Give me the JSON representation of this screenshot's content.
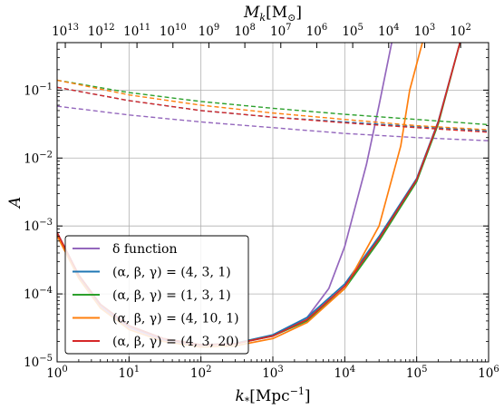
{
  "chart_data": {
    "type": "line",
    "xlabel_main": "k",
    "xlabel_sub": "*",
    "xlabel_unit": "[Mpc",
    "xlabel_unit_exp": "−1",
    "xlabel_unit_close": "]",
    "ylabel": "A",
    "top_label_main": "M",
    "top_label_sub": "k",
    "top_label_unit": "[M",
    "top_label_unit_sub": "⊙",
    "top_label_unit_close": "]",
    "x_scale": "log",
    "y_scale": "log",
    "xlim": [
      1,
      1000000
    ],
    "ylim": [
      1e-05,
      0.5
    ],
    "grid": true,
    "legend_position": "lower-left",
    "x_ticks": [
      {
        "value": 1,
        "base": "10",
        "exp": "0"
      },
      {
        "value": 10,
        "base": "10",
        "exp": "1"
      },
      {
        "value": 100,
        "base": "10",
        "exp": "2"
      },
      {
        "value": 1000,
        "base": "10",
        "exp": "3"
      },
      {
        "value": 10000,
        "base": "10",
        "exp": "4"
      },
      {
        "value": 100000,
        "base": "10",
        "exp": "5"
      },
      {
        "value": 1000000,
        "base": "10",
        "exp": "6"
      }
    ],
    "y_ticks": [
      {
        "value": 1e-05,
        "base": "10",
        "exp": "−5"
      },
      {
        "value": 0.0001,
        "base": "10",
        "exp": "−4"
      },
      {
        "value": 0.001,
        "base": "10",
        "exp": "−3"
      },
      {
        "value": 0.01,
        "base": "10",
        "exp": "−2"
      },
      {
        "value": 0.1,
        "base": "10",
        "exp": "−1"
      }
    ],
    "top_ticks": [
      {
        "k": 1.3,
        "base": "10",
        "exp": "13"
      },
      {
        "k": 4.1,
        "base": "10",
        "exp": "12"
      },
      {
        "k": 12.9,
        "base": "10",
        "exp": "11"
      },
      {
        "k": 40.8,
        "base": "10",
        "exp": "10"
      },
      {
        "k": 129,
        "base": "10",
        "exp": "9"
      },
      {
        "k": 408,
        "base": "10",
        "exp": "8"
      },
      {
        "k": 1290,
        "base": "10",
        "exp": "7"
      },
      {
        "k": 4080,
        "base": "10",
        "exp": "6"
      },
      {
        "k": 12900,
        "base": "10",
        "exp": "5"
      },
      {
        "k": 40800,
        "base": "10",
        "exp": "4"
      },
      {
        "k": 129000,
        "base": "10",
        "exp": "3"
      },
      {
        "k": 408000,
        "base": "10",
        "exp": "2"
      }
    ],
    "series": [
      {
        "name": "δ function",
        "color": "#9467bd",
        "solid": [
          [
            1,
            0.00075
          ],
          [
            2,
            0.00018
          ],
          [
            4,
            6.5e-05
          ],
          [
            10,
            3.2e-05
          ],
          [
            30,
            2.1e-05
          ],
          [
            100,
            1.75e-05
          ],
          [
            300,
            1.85e-05
          ],
          [
            1000,
            2.4e-05
          ],
          [
            3000,
            4.5e-05
          ],
          [
            6000,
            0.00012
          ],
          [
            10000,
            0.0005
          ],
          [
            20000,
            0.008
          ],
          [
            30000,
            0.06
          ],
          [
            45000,
            0.5
          ]
        ],
        "dashed": [
          [
            1,
            0.058
          ],
          [
            10,
            0.043
          ],
          [
            100,
            0.034
          ],
          [
            1000,
            0.028
          ],
          [
            10000,
            0.023
          ],
          [
            100000,
            0.02
          ],
          [
            1000000,
            0.018
          ]
        ]
      },
      {
        "name": "(α, β, γ) = (4, 3, 1)",
        "color": "#1f77b4",
        "solid": [
          [
            1,
            0.0008
          ],
          [
            2,
            0.00019
          ],
          [
            4,
            7e-05
          ],
          [
            10,
            3.4e-05
          ],
          [
            30,
            2.2e-05
          ],
          [
            100,
            1.78e-05
          ],
          [
            300,
            1.88e-05
          ],
          [
            1000,
            2.5e-05
          ],
          [
            3000,
            4.5e-05
          ],
          [
            10000,
            0.00014
          ],
          [
            30000,
            0.0007
          ],
          [
            100000,
            0.005
          ],
          [
            200000,
            0.035
          ],
          [
            400000,
            0.5
          ]
        ],
        "dashed": [
          [
            1,
            0.11
          ],
          [
            10,
            0.07
          ],
          [
            100,
            0.05
          ],
          [
            1000,
            0.04
          ],
          [
            10000,
            0.034
          ],
          [
            100000,
            0.029
          ],
          [
            1000000,
            0.025
          ]
        ]
      },
      {
        "name": "(α, β, γ) = (1, 3, 1)",
        "color": "#2ca02c",
        "solid": [
          [
            1,
            0.00078
          ],
          [
            2,
            0.00019
          ],
          [
            4,
            7e-05
          ],
          [
            10,
            3.4e-05
          ],
          [
            30,
            2.2e-05
          ],
          [
            100,
            1.78e-05
          ],
          [
            300,
            1.85e-05
          ],
          [
            1000,
            2.4e-05
          ],
          [
            3000,
            4e-05
          ],
          [
            10000,
            0.00012
          ],
          [
            30000,
            0.0006
          ],
          [
            100000,
            0.0045
          ],
          [
            200000,
            0.032
          ],
          [
            400000,
            0.5
          ]
        ],
        "dashed": [
          [
            1,
            0.14
          ],
          [
            10,
            0.092
          ],
          [
            100,
            0.068
          ],
          [
            1000,
            0.054
          ],
          [
            10000,
            0.044
          ],
          [
            100000,
            0.037
          ],
          [
            1000000,
            0.031
          ]
        ]
      },
      {
        "name": "(α, β, γ) = (4, 10, 1)",
        "color": "#ff7f0e",
        "solid": [
          [
            1,
            0.00072
          ],
          [
            2,
            0.00017
          ],
          [
            4,
            6.2e-05
          ],
          [
            10,
            3e-05
          ],
          [
            30,
            2e-05
          ],
          [
            100,
            1.65e-05
          ],
          [
            300,
            1.72e-05
          ],
          [
            1000,
            2.2e-05
          ],
          [
            3000,
            3.8e-05
          ],
          [
            10000,
            0.00012
          ],
          [
            30000,
            0.001
          ],
          [
            60000,
            0.015
          ],
          [
            80000,
            0.1
          ],
          [
            120000,
            0.5
          ]
        ],
        "dashed": [
          [
            1,
            0.14
          ],
          [
            10,
            0.085
          ],
          [
            100,
            0.06
          ],
          [
            1000,
            0.046
          ],
          [
            10000,
            0.037
          ],
          [
            100000,
            0.03
          ],
          [
            1000000,
            0.026
          ]
        ]
      },
      {
        "name": "(α, β, γ) = (4, 3, 20)",
        "color": "#d62728",
        "solid": [
          [
            1,
            0.0008
          ],
          [
            2,
            0.00019
          ],
          [
            4,
            7e-05
          ],
          [
            10,
            3.4e-05
          ],
          [
            30,
            2.2e-05
          ],
          [
            100,
            1.78e-05
          ],
          [
            300,
            1.85e-05
          ],
          [
            1000,
            2.4e-05
          ],
          [
            3000,
            4.2e-05
          ],
          [
            10000,
            0.00013
          ],
          [
            30000,
            0.00065
          ],
          [
            100000,
            0.0048
          ],
          [
            200000,
            0.034
          ],
          [
            400000,
            0.5
          ]
        ],
        "dashed": [
          [
            1,
            0.11
          ],
          [
            10,
            0.07
          ],
          [
            100,
            0.05
          ],
          [
            1000,
            0.04
          ],
          [
            10000,
            0.033
          ],
          [
            100000,
            0.028
          ],
          [
            1000000,
            0.024
          ]
        ]
      }
    ]
  }
}
